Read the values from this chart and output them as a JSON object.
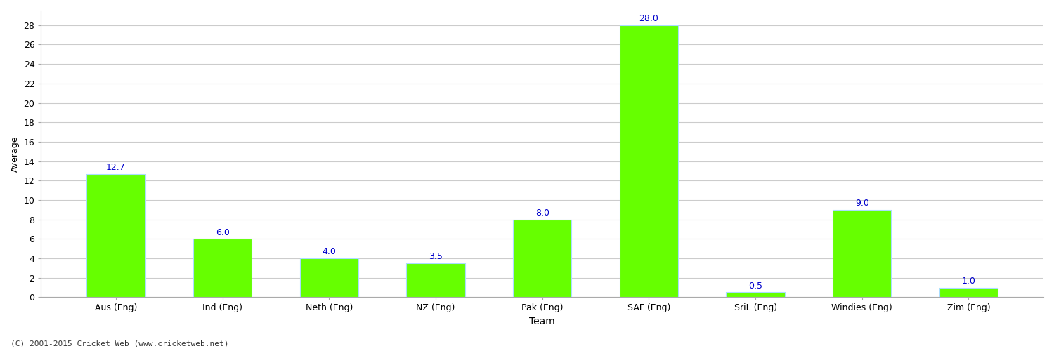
{
  "categories": [
    "Aus (Eng)",
    "Ind (Eng)",
    "Neth (Eng)",
    "NZ (Eng)",
    "Pak (Eng)",
    "SAF (Eng)",
    "SriL (Eng)",
    "Windies (Eng)",
    "Zim (Eng)"
  ],
  "values": [
    12.7,
    6.0,
    4.0,
    3.5,
    8.0,
    28.0,
    0.5,
    9.0,
    1.0
  ],
  "bar_color": "#66ff00",
  "bar_edge_color": "#aaddff",
  "label_color": "#0000cc",
  "ylabel": "Average",
  "xlabel": "Team",
  "ylim": [
    0,
    29.5
  ],
  "yticks": [
    0,
    2,
    4,
    6,
    8,
    10,
    12,
    14,
    16,
    18,
    20,
    22,
    24,
    26,
    28
  ],
  "grid_color": "#cccccc",
  "background_color": "#ffffff",
  "footer": "(C) 2001-2015 Cricket Web (www.cricketweb.net)",
  "label_fontsize": 9,
  "axis_fontsize": 9,
  "xlabel_fontsize": 10,
  "bar_width": 0.55
}
